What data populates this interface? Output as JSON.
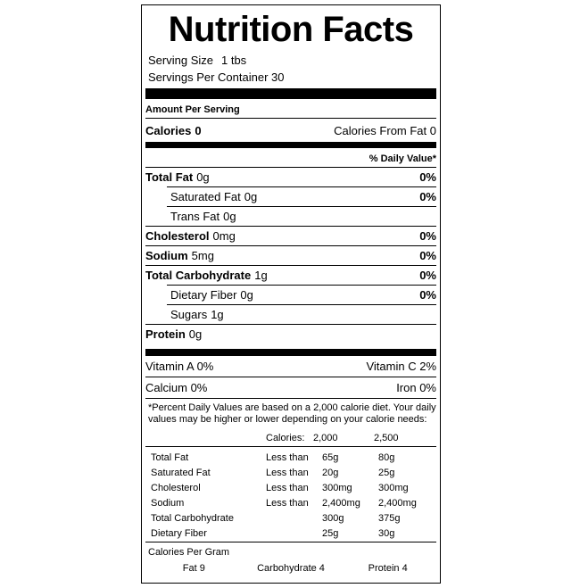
{
  "colors": {
    "text": "#000000",
    "background": "#ffffff",
    "bar": "#000000",
    "border": "#000000"
  },
  "header": {
    "title": "Nutrition Facts"
  },
  "serving": {
    "size_label": "Serving Size",
    "size_value": "1 tbs",
    "per_container": "Servings Per Container 30"
  },
  "amount_per_serving": "Amount Per Serving",
  "calories_row": {
    "label": "Calories",
    "value": "0",
    "from_fat": "Calories From Fat 0"
  },
  "daily_value_header": "% Daily Value*",
  "nutrients": [
    {
      "name": "Total Fat",
      "amount": "0g",
      "dv": "0%"
    },
    {
      "name": "Saturated Fat",
      "amount": "0g",
      "dv": "0%"
    },
    {
      "name": "Trans Fat",
      "amount": "0g",
      "dv": ""
    },
    {
      "name": "Cholesterol",
      "amount": "0mg",
      "dv": "0%"
    },
    {
      "name": "Sodium",
      "amount": "5mg",
      "dv": "0%"
    },
    {
      "name": "Total Carbohydrate",
      "amount": "1g",
      "dv": "0%"
    },
    {
      "name": "Dietary Fiber",
      "amount": "0g",
      "dv": "0%"
    },
    {
      "name": "Sugars",
      "amount": "1g",
      "dv": ""
    },
    {
      "name": "Protein",
      "amount": "0g",
      "dv": ""
    }
  ],
  "micronutrients": [
    {
      "left": "Vitamin A 0%",
      "right": "Vitamin C 2%"
    },
    {
      "left": "Calcium 0%",
      "right": "Iron 0%"
    }
  ],
  "footnote": "*Percent Daily Values are based on a 2,000 calorie diet. Your daily values may be higher or lower depending on your calorie needs:",
  "reference_table": {
    "header": {
      "label": "Calories:",
      "col_2000": "2,000",
      "col_2500": "2,500"
    },
    "rows": [
      {
        "name": "Total Fat",
        "qualifier": "Less than",
        "v2000": "65g",
        "v2500": "80g"
      },
      {
        "name": "Saturated Fat",
        "qualifier": "Less than",
        "v2000": "20g",
        "v2500": "25g"
      },
      {
        "name": "Cholesterol",
        "qualifier": "Less than",
        "v2000": "300mg",
        "v2500": "300mg"
      },
      {
        "name": "Sodium",
        "qualifier": "Less than",
        "v2000": "2,400mg",
        "v2500": "2,400mg"
      },
      {
        "name": "Total Carbohydrate",
        "qualifier": "",
        "v2000": "300g",
        "v2500": "375g"
      },
      {
        "name": "Dietary Fiber",
        "qualifier": "",
        "v2000": "25g",
        "v2500": "30g"
      }
    ]
  },
  "calories_per_gram": {
    "label": "Calories Per Gram",
    "fat": "Fat 9",
    "carbohydrate": "Carbohydrate 4",
    "protein": "Protein 4"
  }
}
